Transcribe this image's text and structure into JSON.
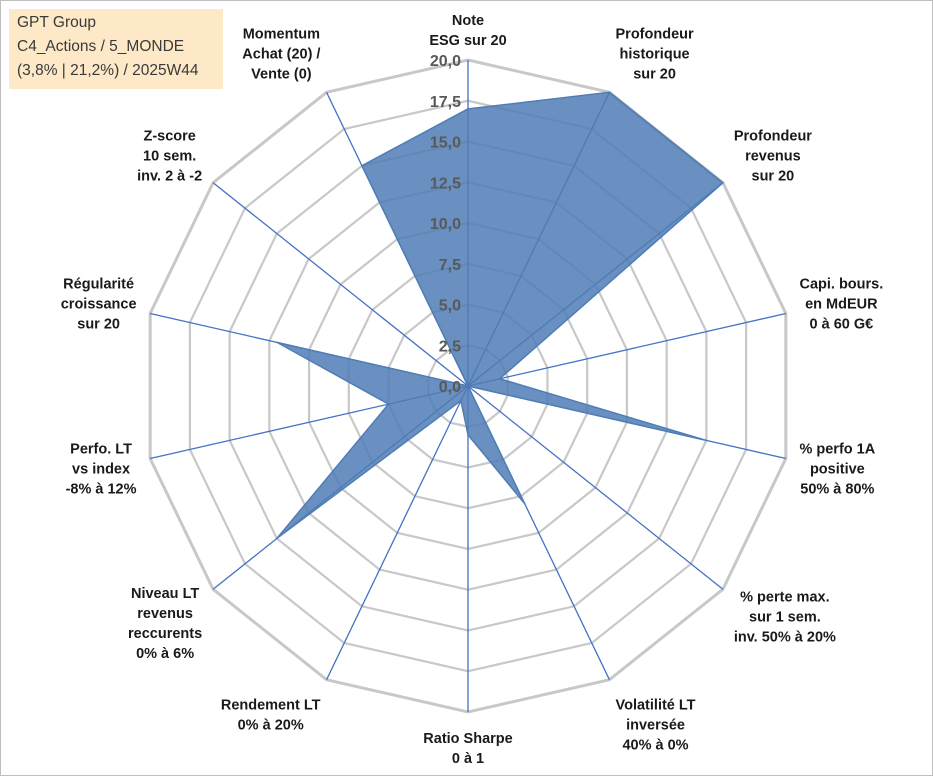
{
  "info": {
    "line1": "GPT Group",
    "line2": "C4_Actions / 5_MONDE",
    "line3": "(3,8% | 21,2%) / 2025W44"
  },
  "colors": {
    "fill": "#4f7db5",
    "spoke": "#4472c4",
    "grid": "#c8c8c8",
    "info_bg": "#fde9c7"
  },
  "chart_data": {
    "type": "radar",
    "title": "",
    "range": [
      0,
      20
    ],
    "ticks": [
      0,
      2.5,
      5,
      7.5,
      10,
      12.5,
      15,
      17.5,
      20
    ],
    "tick_labels": [
      "0,0",
      "2,5",
      "5,0",
      "7,5",
      "10,0",
      "12,5",
      "15,0",
      "17,5",
      "20,0"
    ],
    "axes": [
      {
        "label": [
          "Note",
          "ESG sur 20"
        ]
      },
      {
        "label": [
          "Profondeur",
          "historique",
          "sur 20"
        ]
      },
      {
        "label": [
          "Profondeur",
          "revenus",
          "sur 20"
        ]
      },
      {
        "label": [
          "Capi. bours.",
          "en MdEUR",
          "0 à 60 G€"
        ]
      },
      {
        "label": [
          "% perfo 1A",
          "positive",
          "50% à 80%"
        ]
      },
      {
        "label": [
          "% perte max.",
          "sur 1 sem.",
          "inv. 50% à 20%"
        ]
      },
      {
        "label": [
          "Volatilité LT",
          "inversée",
          "40% à 0%"
        ]
      },
      {
        "label": [
          "Ratio Sharpe",
          "0 à 1"
        ]
      },
      {
        "label": [
          "Rendement LT",
          "0% à 20%"
        ]
      },
      {
        "label": [
          "Niveau LT",
          "revenus",
          "reccurents",
          "0% à 6%"
        ]
      },
      {
        "label": [
          "Perfo. LT",
          "vs index",
          "-8% à 12%"
        ]
      },
      {
        "label": [
          "Régularité",
          "croissance",
          "sur 20"
        ]
      },
      {
        "label": [
          "Z-score",
          "10 sem.",
          "inv. 2 à -2"
        ]
      },
      {
        "label": [
          "Momentum",
          "Achat (20) /",
          "Vente (0)"
        ]
      }
    ],
    "series": [
      {
        "name": "GPT Group",
        "values": [
          17,
          20,
          20,
          2,
          15,
          0,
          8,
          3,
          1,
          15,
          5,
          12,
          0,
          15
        ]
      }
    ]
  }
}
